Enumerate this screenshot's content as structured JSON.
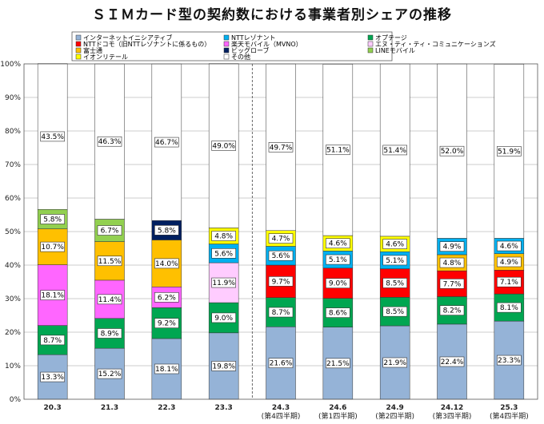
{
  "chart_data": {
    "type": "bar",
    "stacked": true,
    "title": "ＳＩＭカード型の契約数における事業者別シェアの推移",
    "categories": [
      "20.3",
      "21.3",
      "22.3",
      "23.3",
      "24.3",
      "24.6",
      "24.9",
      "24.12",
      "25.3"
    ],
    "category_notes": [
      "",
      "",
      "",
      "",
      "(第4四半期)",
      "(第1四半期)",
      "(第2四半期)",
      "(第3四半期)",
      "(第4四半期)"
    ],
    "ylim": [
      0,
      100
    ],
    "y_ticks": [
      "0%",
      "10%",
      "20%",
      "30%",
      "40%",
      "50%",
      "60%",
      "70%",
      "80%",
      "90%",
      "100%"
    ],
    "legend_position": "top",
    "series": [
      {
        "name": "インターネットイニシアティブ",
        "color": "#95b3d7",
        "values": [
          13.3,
          15.2,
          18.1,
          19.8,
          21.6,
          21.5,
          21.9,
          22.4,
          23.3
        ]
      },
      {
        "name": "オプテージ",
        "color": "#00a651",
        "values": [
          8.7,
          8.9,
          9.2,
          9.0,
          8.7,
          8.6,
          8.5,
          8.2,
          8.1
        ]
      },
      {
        "name": "楽天モバイル（MVNO）",
        "color": "#ff66ff",
        "values": [
          18.1,
          11.4,
          6.2,
          0,
          0,
          0,
          0,
          0,
          0
        ]
      },
      {
        "name": "エヌ・ティ・ティ・コミュニケーションズ",
        "color": "#ffccff",
        "values": [
          0,
          0,
          0,
          11.9,
          0,
          0,
          0,
          0,
          0
        ]
      },
      {
        "name": "NTTドコモ（旧NTTレゾナントに係るもの）",
        "color": "#ff0000",
        "values": [
          0,
          0,
          0,
          0,
          9.7,
          9.0,
          8.5,
          7.7,
          7.1
        ]
      },
      {
        "name": "富士通",
        "color": "#ffc000",
        "values": [
          10.7,
          11.5,
          14.0,
          0,
          0,
          0,
          0,
          4.8,
          4.9
        ]
      },
      {
        "name": "NTTレゾナント",
        "color": "#00b0f0",
        "values": [
          0,
          0,
          0,
          5.6,
          5.6,
          5.1,
          5.1,
          4.9,
          4.6
        ]
      },
      {
        "name": "ビッグローブ",
        "color": "#002060",
        "values": [
          0,
          0,
          5.8,
          0,
          0,
          0,
          0,
          0,
          0
        ]
      },
      {
        "name": "LINEモバイル",
        "color": "#92d050",
        "values": [
          5.8,
          6.7,
          0,
          0,
          0,
          0,
          0,
          0,
          0
        ]
      },
      {
        "name": "イオンリテール",
        "color": "#ffff00",
        "values": [
          0,
          0,
          0,
          4.8,
          4.7,
          4.6,
          4.6,
          0,
          0
        ]
      },
      {
        "name": "その他",
        "color": "#ffffff",
        "values": [
          43.5,
          46.3,
          46.7,
          49.0,
          49.7,
          51.1,
          51.4,
          52.0,
          51.9
        ]
      }
    ],
    "legend_order": [
      "インターネットイニシアティブ",
      "NTTレゾナント",
      "オプテージ",
      "NTTドコモ（旧NTTレゾナントに係るもの）",
      "楽天モバイル（MVNO）",
      "エヌ・ティ・ティ・コミュニケーションズ",
      "富士通",
      "ビッグローブ",
      "LINEモバイル",
      "イオンリテール",
      "その他"
    ]
  }
}
